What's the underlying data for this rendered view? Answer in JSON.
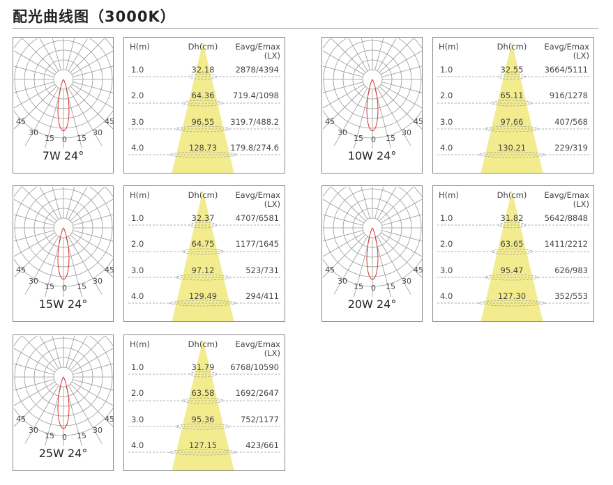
{
  "title": "配光曲线图（3000K）",
  "headers": {
    "h": "H(m)",
    "dh": "Dh(cm)",
    "eavg": "Eavg/Emax",
    "unit": "(LX)"
  },
  "angle_labels": {
    "a45": "45",
    "a30": "30",
    "a15": "15",
    "a0": "0"
  },
  "colors": {
    "beam": "#f3ec8e",
    "curve": "#d9342b",
    "grid": "#999999"
  },
  "panels": [
    {
      "label": "7W 24°",
      "rows": [
        {
          "h": "1.0",
          "dh": "32.18",
          "e": "2878/4394"
        },
        {
          "h": "2.0",
          "dh": "64.36",
          "e": "719.4/1098"
        },
        {
          "h": "3.0",
          "dh": "96.55",
          "e": "319.7/488.2"
        },
        {
          "h": "4.0",
          "dh": "128.73",
          "e": "179.8/274.6"
        }
      ]
    },
    {
      "label": "10W 24°",
      "rows": [
        {
          "h": "1.0",
          "dh": "32.55",
          "e": "3664/5111"
        },
        {
          "h": "2.0",
          "dh": "65.11",
          "e": "916/1278"
        },
        {
          "h": "3.0",
          "dh": "97.66",
          "e": "407/568"
        },
        {
          "h": "4.0",
          "dh": "130.21",
          "e": "229/319"
        }
      ]
    },
    {
      "label": "15W 24°",
      "rows": [
        {
          "h": "1.0",
          "dh": "32.37",
          "e": "4707/6581"
        },
        {
          "h": "2.0",
          "dh": "64.75",
          "e": "1177/1645"
        },
        {
          "h": "3.0",
          "dh": "97.12",
          "e": "523/731"
        },
        {
          "h": "4.0",
          "dh": "129.49",
          "e": "294/411"
        }
      ]
    },
    {
      "label": "20W 24°",
      "rows": [
        {
          "h": "1.0",
          "dh": "31.82",
          "e": "5642/8848"
        },
        {
          "h": "2.0",
          "dh": "63.65",
          "e": "1411/2212"
        },
        {
          "h": "3.0",
          "dh": "95.47",
          "e": "626/983"
        },
        {
          "h": "4.0",
          "dh": "127.30",
          "e": "352/553"
        }
      ]
    },
    {
      "label": "25W 24°",
      "rows": [
        {
          "h": "1.0",
          "dh": "31.79",
          "e": "6768/10590"
        },
        {
          "h": "2.0",
          "dh": "63.58",
          "e": "1692/2647"
        },
        {
          "h": "3.0",
          "dh": "95.36",
          "e": "752/1177"
        },
        {
          "h": "4.0",
          "dh": "127.15",
          "e": "423/661"
        }
      ]
    }
  ]
}
